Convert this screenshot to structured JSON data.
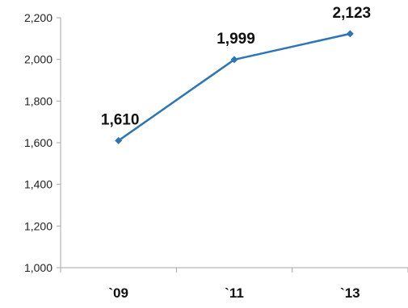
{
  "chart_data": {
    "type": "line",
    "title": "",
    "xlabel": "",
    "ylabel": "",
    "categories": [
      "`09",
      "`11",
      "`13"
    ],
    "series": [
      {
        "values": [
          1610,
          1999,
          2123
        ],
        "color": "#2e75b6"
      }
    ],
    "data_labels": [
      "1,610",
      "1,999",
      "2,123"
    ],
    "ylim": [
      1000,
      2200
    ],
    "y_ticks": [
      1000,
      1200,
      1400,
      1600,
      1800,
      2000,
      2200
    ],
    "y_tick_labels": [
      "1,000",
      "1,200",
      "1,400",
      "1,600",
      "1,800",
      "2,000",
      "2,200"
    ],
    "grid": false,
    "legend": "none",
    "marker": "diamond"
  }
}
